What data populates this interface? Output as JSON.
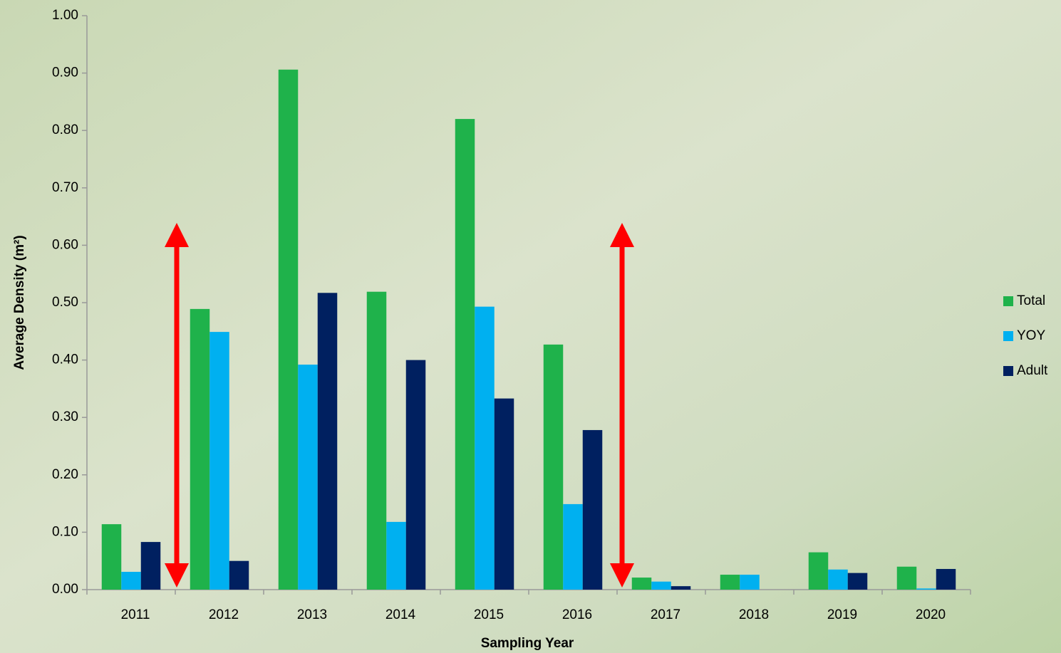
{
  "chart_data": {
    "type": "bar",
    "xlabel": "Sampling Year",
    "ylabel": "Average Density (m²)",
    "categories": [
      "2011",
      "2012",
      "2013",
      "2014",
      "2015",
      "2016",
      "2017",
      "2018",
      "2019",
      "2020"
    ],
    "series": [
      {
        "name": "Total",
        "color": "#1fb24b",
        "values": [
          0.114,
          0.489,
          0.906,
          0.519,
          0.82,
          0.427,
          0.021,
          0.026,
          0.065,
          0.04
        ]
      },
      {
        "name": "YOY",
        "color": "#00b0f0",
        "values": [
          0.031,
          0.449,
          0.392,
          0.118,
          0.493,
          0.149,
          0.014,
          0.026,
          0.035,
          0.002
        ]
      },
      {
        "name": "Adult",
        "color": "#002060",
        "values": [
          0.083,
          0.05,
          0.517,
          0.4,
          0.333,
          0.278,
          0.006,
          0,
          0.029,
          0.036
        ]
      }
    ],
    "ylim": [
      0,
      1
    ],
    "yticks": [
      {
        "value": 0,
        "label": "0.00"
      },
      {
        "value": 0.1,
        "label": "0.10"
      },
      {
        "value": 0.2,
        "label": "0.20"
      },
      {
        "value": 0.3,
        "label": "0.30"
      },
      {
        "value": 0.4,
        "label": "0.40"
      },
      {
        "value": 0.5,
        "label": "0.50"
      },
      {
        "value": 0.6,
        "label": "0.60"
      },
      {
        "value": 0.7,
        "label": "0.70"
      },
      {
        "value": 0.8,
        "label": "0.80"
      },
      {
        "value": 0.9,
        "label": "0.90"
      },
      {
        "value": 1,
        "label": "1.00"
      }
    ],
    "legend": "right"
  }
}
